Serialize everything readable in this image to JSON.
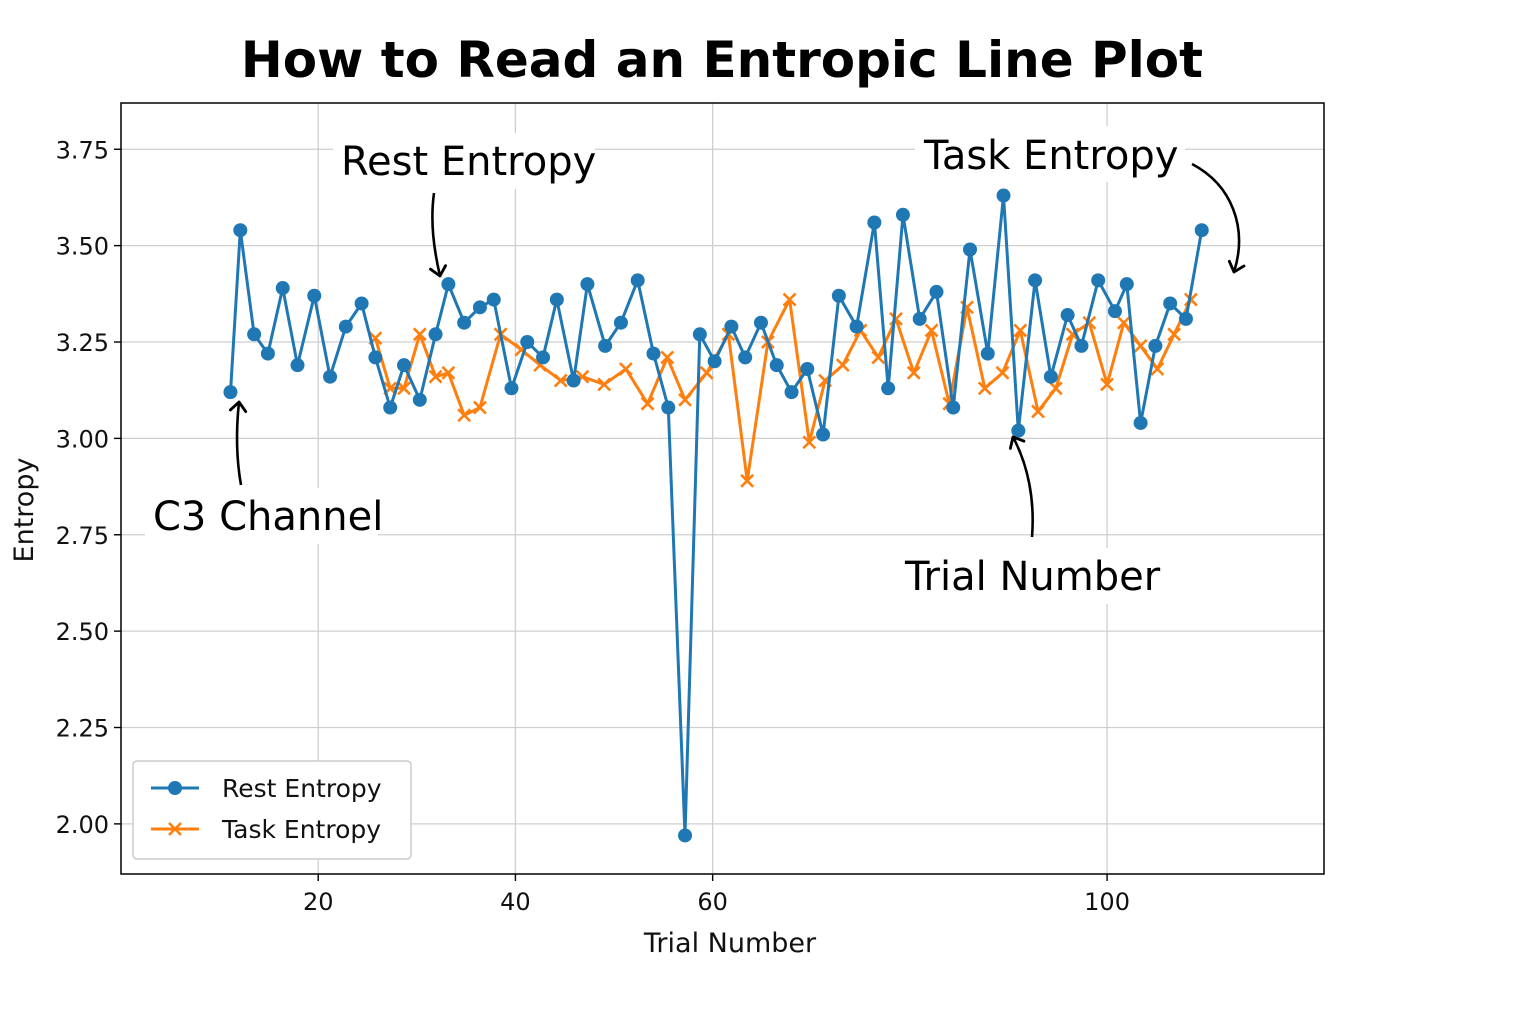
{
  "chart_data": {
    "type": "line",
    "title": "How to Read an Entropic Line Plot",
    "xlabel": "Trial Number",
    "ylabel": "Entropy",
    "xlim": [
      0,
      122
    ],
    "ylim": [
      1.87,
      3.87
    ],
    "xticks": [
      20,
      40,
      60,
      100
    ],
    "xtick_labels": [
      "20",
      "40",
      "60",
      "100"
    ],
    "yticks": [
      2.0,
      2.25,
      2.5,
      2.75,
      3.0,
      3.25,
      3.5,
      3.75
    ],
    "ytick_labels": [
      "2.00",
      "2.25",
      "2.50",
      "2.75",
      "3.00",
      "3.25",
      "3.50",
      "3.75"
    ],
    "grid": true,
    "legend_position": "bottom-left",
    "series": [
      {
        "name": "Rest Entropy",
        "color": "#1f77b4",
        "marker": "circle",
        "x": [
          11.1,
          12.1,
          13.5,
          14.9,
          16.4,
          17.9,
          19.6,
          21.2,
          22.8,
          24.4,
          25.8,
          27.3,
          28.7,
          30.3,
          31.9,
          33.2,
          34.8,
          36.4,
          37.8,
          39.6,
          41.2,
          42.8,
          44.2,
          45.9,
          47.3,
          49.1,
          50.7,
          52.4,
          54.0,
          55.5,
          57.2,
          58.7,
          60.2,
          61.9,
          63.3,
          64.9,
          66.5,
          68.0,
          69.6,
          71.2,
          72.8,
          74.6,
          76.4,
          77.8,
          79.3,
          81.0,
          82.7,
          84.4,
          86.1,
          87.9,
          89.5,
          91.0,
          92.7,
          94.3,
          96.0,
          97.4,
          99.1,
          100.8,
          102.0,
          103.4,
          104.9,
          106.4,
          108.0,
          109.6
        ],
        "values": [
          3.12,
          3.54,
          3.27,
          3.22,
          3.39,
          3.19,
          3.37,
          3.16,
          3.29,
          3.35,
          3.21,
          3.08,
          3.19,
          3.1,
          3.27,
          3.4,
          3.3,
          3.34,
          3.36,
          3.13,
          3.25,
          3.21,
          3.36,
          3.15,
          3.4,
          3.24,
          3.3,
          3.41,
          3.22,
          3.08,
          1.97,
          3.27,
          3.2,
          3.29,
          3.21,
          3.3,
          3.19,
          3.12,
          3.18,
          3.01,
          3.37,
          3.29,
          3.56,
          3.13,
          3.58,
          3.31,
          3.38,
          3.08,
          3.49,
          3.22,
          3.63,
          3.02,
          3.41,
          3.16,
          3.32,
          3.24,
          3.41,
          3.33,
          3.4,
          3.04,
          3.24,
          3.35,
          3.31,
          3.54
        ]
      },
      {
        "name": "Task Entropy",
        "color": "#ff7f0e",
        "marker": "x",
        "x": [
          25.8,
          27.3,
          28.7,
          30.3,
          31.9,
          33.2,
          34.8,
          36.4,
          38.5,
          40.6,
          42.5,
          44.6,
          46.8,
          49.0,
          51.2,
          53.4,
          55.4,
          57.2,
          59.4,
          61.6,
          63.5,
          65.6,
          67.8,
          69.8,
          71.4,
          73.2,
          75.0,
          76.8,
          78.6,
          80.4,
          82.2,
          84.0,
          85.8,
          87.6,
          89.4,
          91.2,
          93.0,
          94.8,
          96.5,
          98.2,
          100.0,
          101.7,
          103.4,
          105.1,
          106.8,
          108.5
        ],
        "values": [
          3.26,
          3.13,
          3.13,
          3.27,
          3.16,
          3.17,
          3.06,
          3.08,
          3.27,
          3.23,
          3.19,
          3.15,
          3.16,
          3.14,
          3.18,
          3.09,
          3.21,
          3.1,
          3.17,
          3.27,
          2.89,
          3.25,
          3.36,
          2.99,
          3.15,
          3.19,
          3.28,
          3.21,
          3.31,
          3.17,
          3.28,
          3.09,
          3.34,
          3.13,
          3.17,
          3.28,
          3.07,
          3.13,
          3.27,
          3.3,
          3.14,
          3.3,
          3.24,
          3.18,
          3.27,
          3.36
        ]
      }
    ],
    "annotations": [
      {
        "text": "Rest Entropy"
      },
      {
        "text": "Task Entropy"
      },
      {
        "text": "C3 Channel"
      },
      {
        "text": "Trial Number"
      }
    ]
  }
}
